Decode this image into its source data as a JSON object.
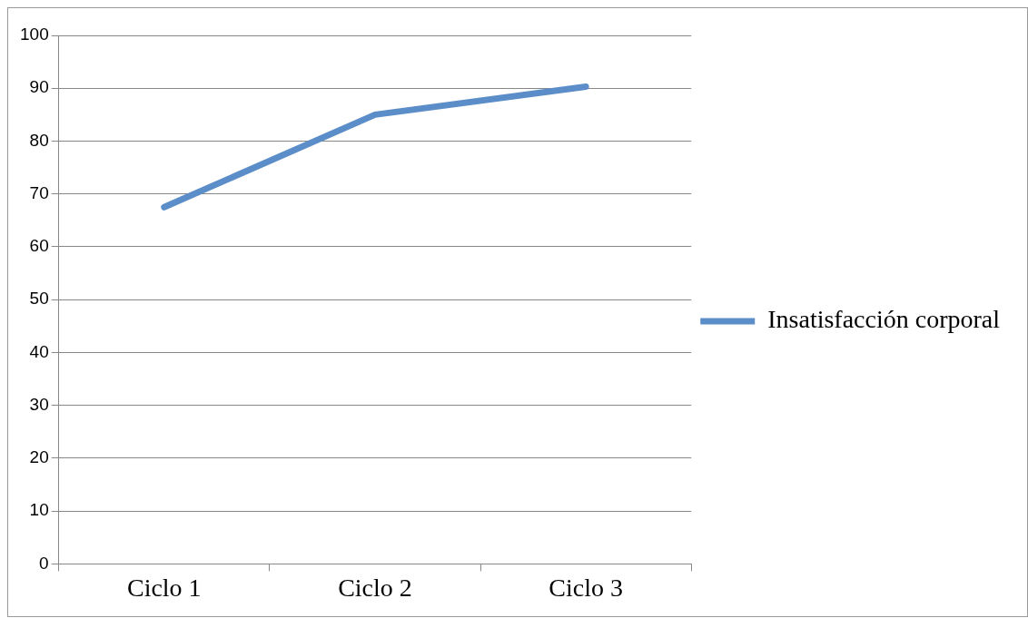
{
  "chart_data": {
    "type": "line",
    "categories": [
      "Ciclo 1",
      "Ciclo 2",
      "Ciclo 3"
    ],
    "series": [
      {
        "name": "Insatisfacción corporal",
        "color": "#5b8ec9",
        "values": [
          67.5,
          85,
          90.3
        ]
      }
    ],
    "ylim": [
      0,
      100
    ],
    "yticks": [
      0,
      10,
      20,
      30,
      40,
      50,
      60,
      70,
      80,
      90,
      100
    ],
    "grid": "y",
    "legend": "right",
    "marker": "none"
  }
}
